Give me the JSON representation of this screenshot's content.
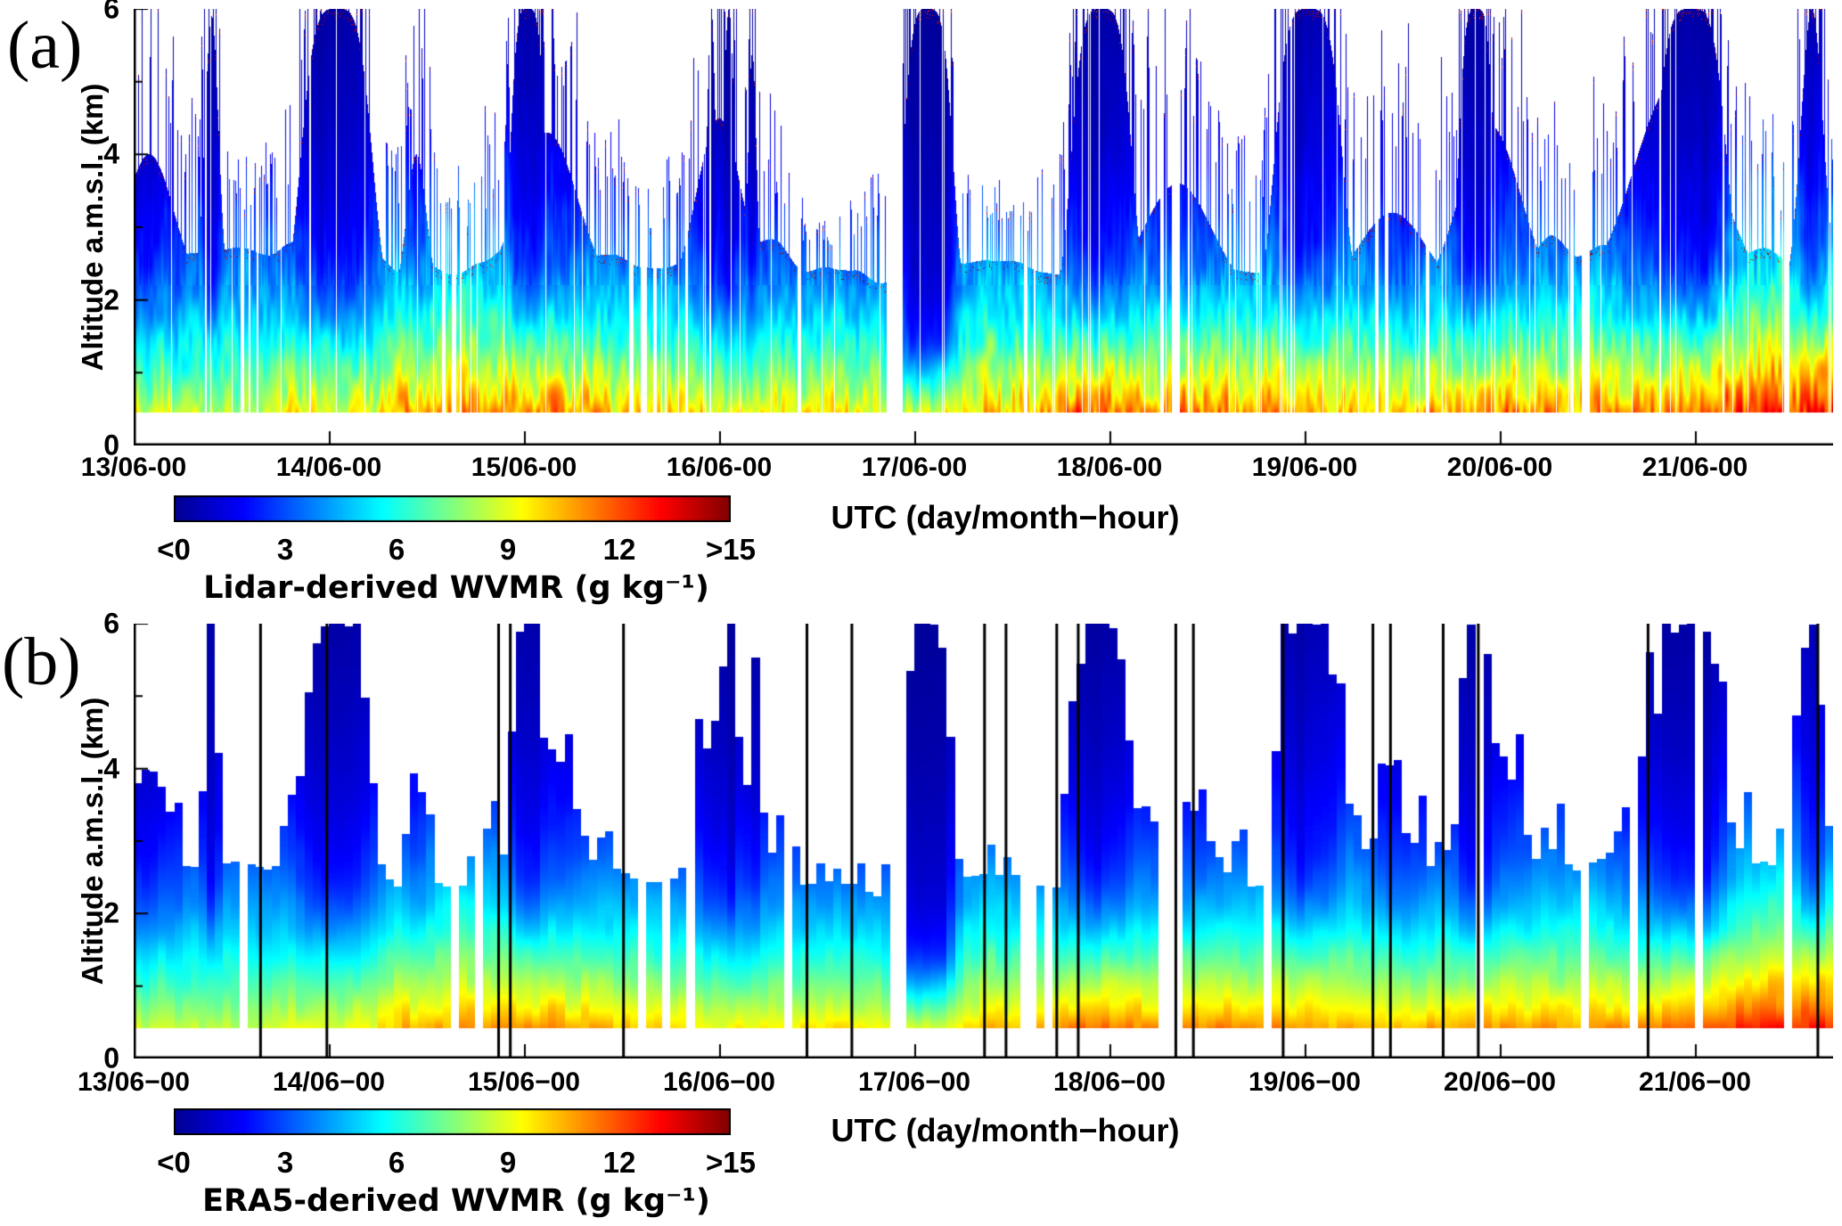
{
  "figure": {
    "panel_a_letter": "(a)",
    "panel_b_letter": "(b)"
  },
  "chart_data": [
    {
      "type": "heatmap",
      "panel": "a",
      "title": "Lidar-derived water vapour mixing ratio time-height curtain",
      "xlabel": "UTC (day/month−hour)",
      "ylabel": "Altitude a.m.s.l. (km)",
      "x_tick_labels": [
        "13/06-00",
        "14/06-00",
        "15/06-00",
        "16/06-00",
        "17/06-00",
        "18/06-00",
        "19/06-00",
        "20/06-00",
        "21/06-00"
      ],
      "y_tick_labels": [
        "0",
        "2",
        "4",
        "6"
      ],
      "ylim": [
        0,
        6
      ],
      "x_span_days": 8.708,
      "colorbar": {
        "label": "Lidar-derived WVMR (g kg⁻¹)",
        "tick_labels": [
          "<0",
          "3",
          "6",
          "9",
          "12",
          ">15"
        ],
        "vmin": 0,
        "vmax": 15,
        "colormap": "jet"
      },
      "field_model": {
        "min_altitude_km": 0.45,
        "bl_mean_top_km": 2.4,
        "ctrl_dt_days": 0.5,
        "surface_ctrl_gkg": [
          8.5,
          8.5,
          9.0,
          10.5,
          11.0,
          10.5,
          9.5,
          10.0,
          9.5,
          10.5,
          11.5,
          11.0,
          11.0,
          10.5,
          11.0,
          11.0,
          12.0,
          13.0,
          13.5
        ],
        "surface_noise": 0.8,
        "texture_amp": 0.16,
        "streak_amp": 0.15,
        "needle_amp": 1.0,
        "micro_gap_rate": 0.012,
        "speckle": true,
        "plumes": [
          {
            "t": 0.08,
            "hw": 0.18,
            "top": 4.0,
            "dry": 0.5
          },
          {
            "t": 0.4,
            "hw": 0.05,
            "top": 5.9,
            "dry": 0.95
          },
          {
            "t": 0.96,
            "hw": 0.04,
            "top": 6.0,
            "dry": 1.0
          },
          {
            "t": 1.04,
            "hw": 0.2,
            "top": 6.0,
            "dry": 0.75,
            "e": 2
          },
          {
            "t": 1.45,
            "hw": 0.07,
            "top": 4.0,
            "dry": 0.4
          },
          {
            "t": 2.02,
            "hw": 0.1,
            "top": 6.0,
            "dry": 0.85,
            "e": 2
          },
          {
            "t": 2.12,
            "hw": 0.22,
            "top": 4.3,
            "dry": 0.45
          },
          {
            "t": 2.96,
            "hw": 0.03,
            "top": 6.0,
            "dry": 1.05
          },
          {
            "t": 3.0,
            "hw": 0.16,
            "top": 4.5,
            "dry": 0.55
          },
          {
            "t": 3.05,
            "hw": 0.04,
            "top": 6.0,
            "dry": 1.1
          },
          {
            "t": 3.17,
            "hw": 0.03,
            "top": 5.4,
            "dry": 0.9
          },
          {
            "t": 4.07,
            "hw": 0.14,
            "top": 6.0,
            "dry": 1.35,
            "e": 2,
            "zl": 1.0
          },
          {
            "t": 4.92,
            "hw": 0.05,
            "top": 6.0,
            "dry": 1.0
          },
          {
            "t": 4.96,
            "hw": 0.17,
            "top": 6.0,
            "dry": 0.7,
            "e": 2
          },
          {
            "t": 5.35,
            "hw": 0.25,
            "top": 3.6,
            "dry": 0.35
          },
          {
            "t": 5.97,
            "hw": 0.05,
            "top": 6.0,
            "dry": 1.05
          },
          {
            "t": 6.02,
            "hw": 0.19,
            "top": 6.0,
            "dry": 0.8,
            "e": 2
          },
          {
            "t": 6.45,
            "hw": 0.25,
            "top": 3.2,
            "dry": 0.3
          },
          {
            "t": 6.88,
            "hw": 0.1,
            "top": 6.0,
            "dry": 0.9,
            "e": 2
          },
          {
            "t": 6.95,
            "hw": 0.22,
            "top": 4.4,
            "dry": 0.45
          },
          {
            "t": 7.9,
            "hw": 0.3,
            "top": 5.0,
            "dry": 0.5
          },
          {
            "t": 7.98,
            "hw": 0.2,
            "top": 6.0,
            "dry": 0.8,
            "e": 2
          },
          {
            "t": 8.05,
            "hw": 0.06,
            "top": 6.0,
            "dry": 1.05
          },
          {
            "t": 8.6,
            "hw": 0.08,
            "top": 6.0,
            "dry": 0.9
          }
        ],
        "gaps_days": [
          [
            0.55,
            0.565
          ],
          [
            0.59,
            0.6
          ],
          [
            0.63,
            0.64
          ],
          [
            0.9,
            0.91
          ],
          [
            1.58,
            1.6
          ],
          [
            1.63,
            1.65
          ],
          [
            1.67,
            1.68
          ],
          [
            2.54,
            2.56
          ],
          [
            2.6,
            2.63
          ],
          [
            2.66,
            2.68
          ],
          [
            2.72,
            2.73
          ],
          [
            3.4,
            3.42
          ],
          [
            3.86,
            3.94
          ],
          [
            4.56,
            4.58
          ],
          [
            4.61,
            4.62
          ],
          [
            5.26,
            5.28
          ],
          [
            5.32,
            5.36
          ],
          [
            5.4,
            5.41
          ],
          [
            6.36,
            6.38
          ],
          [
            6.41,
            6.43
          ],
          [
            6.62,
            6.64
          ],
          [
            7.36,
            7.38
          ],
          [
            7.42,
            7.46
          ],
          [
            8.46,
            8.48
          ]
        ]
      }
    },
    {
      "type": "heatmap",
      "panel": "b",
      "title": "ERA5-derived water vapour mixing ratio time-height curtain",
      "xlabel": "UTC (day/month−hour)",
      "ylabel": "Altitude a.m.s.l. (km)",
      "x_tick_labels": [
        "13/06−00",
        "14/06−00",
        "15/06−00",
        "16/06−00",
        "17/06−00",
        "18/06−00",
        "19/06−00",
        "20/06−00",
        "21/06−00"
      ],
      "y_tick_labels": [
        "0",
        "2",
        "4",
        "6"
      ],
      "ylim": [
        0,
        6
      ],
      "x_span_days": 8.708,
      "colorbar": {
        "label": "ERA5-derived WVMR (g kg⁻¹)",
        "tick_labels": [
          "<0",
          "3",
          "6",
          "9",
          "12",
          ">15"
        ],
        "vmin": 0,
        "vmax": 15,
        "colormap": "jet"
      },
      "vertical_line_times_days": [
        0.65,
        0.99,
        1.87,
        1.93,
        2.51,
        3.45,
        3.68,
        4.36,
        4.47,
        4.73,
        4.84,
        5.34,
        5.43,
        5.89,
        6.35,
        6.44,
        6.71,
        6.89,
        7.76,
        8.63
      ],
      "field_model": {
        "min_altitude_km": 0.42,
        "bl_mean_top_km": 2.4,
        "ctrl_dt_days": 0.5,
        "surface_ctrl_gkg": [
          8.5,
          8.5,
          9.0,
          10.5,
          11.0,
          10.5,
          9.5,
          10.0,
          9.5,
          10.5,
          11.5,
          11.0,
          11.0,
          10.5,
          11.0,
          11.0,
          12.0,
          13.0,
          13.5
        ],
        "surface_noise": 0.4,
        "texture_amp": 0.06,
        "streak_amp": 0,
        "needle_amp": 0.45,
        "micro_gap_rate": 0.03,
        "speckle": false,
        "block_hours": 1,
        "plumes": [
          {
            "t": 0.08,
            "hw": 0.18,
            "top": 4.0,
            "dry": 0.5
          },
          {
            "t": 0.4,
            "hw": 0.05,
            "top": 5.9,
            "dry": 0.95
          },
          {
            "t": 0.96,
            "hw": 0.04,
            "top": 6.0,
            "dry": 1.0
          },
          {
            "t": 1.04,
            "hw": 0.2,
            "top": 6.0,
            "dry": 0.75,
            "e": 2
          },
          {
            "t": 1.45,
            "hw": 0.07,
            "top": 4.0,
            "dry": 0.4
          },
          {
            "t": 2.02,
            "hw": 0.1,
            "top": 6.0,
            "dry": 0.85,
            "e": 2
          },
          {
            "t": 2.12,
            "hw": 0.22,
            "top": 4.3,
            "dry": 0.45
          },
          {
            "t": 2.96,
            "hw": 0.03,
            "top": 6.0,
            "dry": 1.05
          },
          {
            "t": 3.0,
            "hw": 0.16,
            "top": 4.5,
            "dry": 0.55
          },
          {
            "t": 3.05,
            "hw": 0.04,
            "top": 6.0,
            "dry": 1.1
          },
          {
            "t": 3.17,
            "hw": 0.03,
            "top": 5.4,
            "dry": 0.9
          },
          {
            "t": 4.07,
            "hw": 0.14,
            "top": 6.0,
            "dry": 1.35,
            "e": 2,
            "zl": 1.0
          },
          {
            "t": 4.92,
            "hw": 0.05,
            "top": 6.0,
            "dry": 1.0
          },
          {
            "t": 4.96,
            "hw": 0.17,
            "top": 6.0,
            "dry": 0.7,
            "e": 2
          },
          {
            "t": 5.35,
            "hw": 0.25,
            "top": 3.6,
            "dry": 0.35
          },
          {
            "t": 5.97,
            "hw": 0.05,
            "top": 6.0,
            "dry": 1.05
          },
          {
            "t": 6.02,
            "hw": 0.19,
            "top": 6.0,
            "dry": 0.8,
            "e": 2
          },
          {
            "t": 6.45,
            "hw": 0.25,
            "top": 3.2,
            "dry": 0.3
          },
          {
            "t": 6.88,
            "hw": 0.1,
            "top": 6.0,
            "dry": 0.9,
            "e": 2
          },
          {
            "t": 6.95,
            "hw": 0.22,
            "top": 4.4,
            "dry": 0.45
          },
          {
            "t": 7.9,
            "hw": 0.3,
            "top": 5.0,
            "dry": 0.5
          },
          {
            "t": 7.98,
            "hw": 0.2,
            "top": 6.0,
            "dry": 0.8,
            "e": 2
          },
          {
            "t": 8.05,
            "hw": 0.06,
            "top": 6.0,
            "dry": 1.05
          },
          {
            "t": 8.6,
            "hw": 0.08,
            "top": 6.0,
            "dry": 0.9
          }
        ],
        "gaps_days": [
          [
            0.55,
            0.565
          ],
          [
            0.59,
            0.6
          ],
          [
            0.63,
            0.64
          ],
          [
            0.9,
            0.91
          ],
          [
            1.58,
            1.6
          ],
          [
            1.63,
            1.65
          ],
          [
            1.67,
            1.68
          ],
          [
            2.54,
            2.56
          ],
          [
            2.6,
            2.63
          ],
          [
            2.66,
            2.68
          ],
          [
            2.72,
            2.73
          ],
          [
            3.4,
            3.42
          ],
          [
            3.86,
            3.94
          ],
          [
            4.56,
            4.58
          ],
          [
            4.61,
            4.62
          ],
          [
            5.26,
            5.28
          ],
          [
            5.32,
            5.36
          ],
          [
            5.4,
            5.41
          ],
          [
            6.36,
            6.38
          ],
          [
            6.41,
            6.43
          ],
          [
            6.62,
            6.64
          ],
          [
            7.36,
            7.38
          ],
          [
            7.42,
            7.46
          ],
          [
            8.46,
            8.48
          ]
        ]
      }
    }
  ]
}
